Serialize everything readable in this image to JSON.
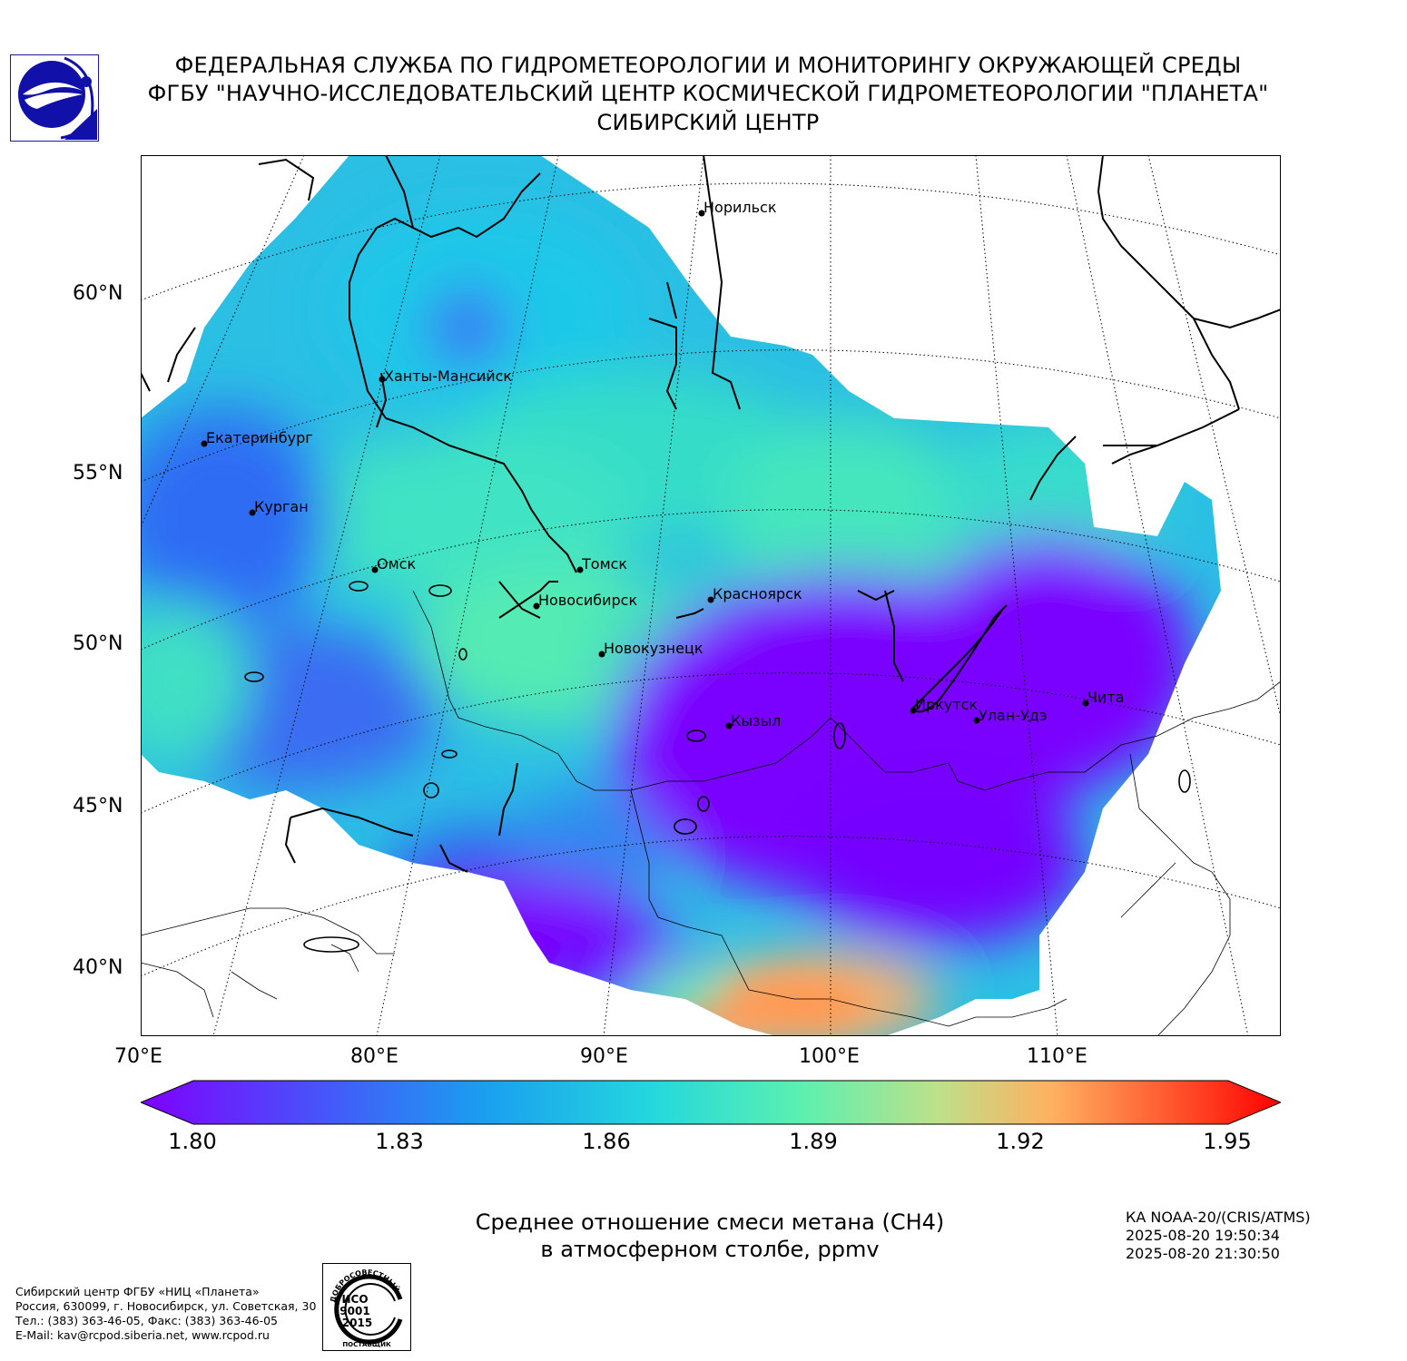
{
  "header": {
    "line1": "ФЕДЕРАЛЬНАЯ СЛУЖБА ПО ГИДРОМЕТЕОРОЛОГИИ И МОНИТОРИНГУ ОКРУЖАЮЩЕЙ СРЕДЫ",
    "line2": "ФГБУ \"НАУЧНО-ИССЛЕДОВАТЕЛЬСКИЙ ЦЕНТР КОСМИЧЕСКОЙ ГИДРОМЕТЕОРОЛОГИИ \"ПЛАНЕТА\"",
    "line3": "СИБИРСКИЙ ЦЕНТР"
  },
  "logo_icon": "planeta-logo-icon",
  "map": {
    "lat_labels": [
      "60°N",
      "55°N",
      "50°N",
      "45°N",
      "40°N"
    ],
    "lon_labels": [
      "70°E",
      "80°E",
      "90°E",
      "100°E",
      "110°E"
    ],
    "cities": [
      {
        "name": "Норильск"
      },
      {
        "name": "Ханты-Мансийск"
      },
      {
        "name": "Екатеринбург"
      },
      {
        "name": "Курган"
      },
      {
        "name": "Омск"
      },
      {
        "name": "Томск"
      },
      {
        "name": "Новосибирск"
      },
      {
        "name": "Красноярск"
      },
      {
        "name": "Новокузнецк"
      },
      {
        "name": "Иркутск"
      },
      {
        "name": "Улан-Удэ"
      },
      {
        "name": "Чита"
      },
      {
        "name": "Кызыл"
      }
    ],
    "colors": {
      "low": "#7a00ff",
      "mid": "#3be0c8",
      "high": "#ff1400"
    }
  },
  "colorbar": {
    "ticks": [
      "1.80",
      "1.83",
      "1.86",
      "1.89",
      "1.92",
      "1.95"
    ],
    "min": 1.8,
    "max": 1.95
  },
  "title": {
    "line1": "Среднее отношение смеси метана (СН4)",
    "line2": "в атмосферном столбе, ppmv"
  },
  "satellite": {
    "name": "КА NOAA-20/(CRIS/ATMS)",
    "start": "2025-08-20 19:50:34",
    "end": "2025-08-20 21:30:50"
  },
  "footer": {
    "line1": "Сибирский центр ФГБУ «НИЦ «Планета»",
    "line2": "Россия, 630099, г. Новосибирск, ул. Советская, 30",
    "line3": "Тел.: (383) 363-46-05, Факс: (383) 363-46-05",
    "line4": "E-Mail: kav@rcpod.siberia.net, www.rcpod.ru"
  },
  "iso_badge": {
    "arc_text": "ДОБРОСОВЕСТНЫЙ",
    "line1": "ИСО",
    "line2": "9001",
    "line3": "-2015",
    "bottom": "ПОСТАВЩИК"
  }
}
